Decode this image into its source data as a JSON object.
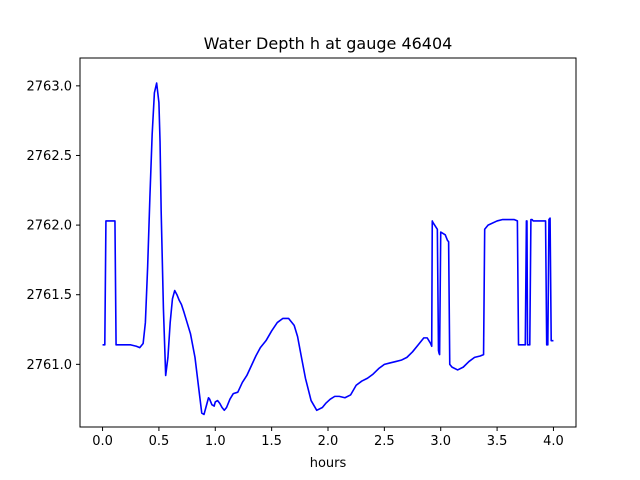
{
  "chart_data": {
    "type": "line",
    "title": "Water Depth h at gauge 46404",
    "xlabel": "hours",
    "ylabel": "",
    "xlim": [
      -0.2,
      4.2
    ],
    "ylim": [
      2760.55,
      2763.2
    ],
    "x_ticks": [
      0.0,
      0.5,
      1.0,
      1.5,
      2.0,
      2.5,
      3.0,
      3.5,
      4.0
    ],
    "x_tick_labels": [
      "0.0",
      "0.5",
      "1.0",
      "1.5",
      "2.0",
      "2.5",
      "3.0",
      "3.5",
      "4.0"
    ],
    "y_ticks": [
      2761.0,
      2761.5,
      2762.0,
      2762.5,
      2763.0
    ],
    "y_tick_labels": [
      "2761.0",
      "2761.5",
      "2762.0",
      "2762.5",
      "2763.0"
    ],
    "grid": false,
    "legend": "none",
    "series": [
      {
        "color": "#0000ff",
        "x": [
          0.0,
          0.02,
          0.03,
          0.08,
          0.11,
          0.12,
          0.2,
          0.25,
          0.3,
          0.33,
          0.36,
          0.38,
          0.4,
          0.42,
          0.44,
          0.46,
          0.48,
          0.5,
          0.51,
          0.52,
          0.54,
          0.56,
          0.58,
          0.6,
          0.62,
          0.64,
          0.66,
          0.68,
          0.7,
          0.72,
          0.75,
          0.78,
          0.82,
          0.85,
          0.88,
          0.9,
          0.92,
          0.94,
          0.95,
          0.97,
          0.99,
          1.0,
          1.02,
          1.04,
          1.06,
          1.08,
          1.1,
          1.13,
          1.16,
          1.2,
          1.24,
          1.28,
          1.32,
          1.36,
          1.4,
          1.45,
          1.5,
          1.55,
          1.6,
          1.65,
          1.7,
          1.73,
          1.76,
          1.8,
          1.85,
          1.9,
          1.95,
          1.98,
          2.02,
          2.06,
          2.1,
          2.15,
          2.2,
          2.25,
          2.3,
          2.35,
          2.4,
          2.45,
          2.5,
          2.55,
          2.6,
          2.65,
          2.7,
          2.75,
          2.8,
          2.85,
          2.88,
          2.91,
          2.92,
          2.925,
          2.93,
          2.97,
          2.98,
          2.985,
          2.99,
          3.0,
          3.04,
          3.06,
          3.07,
          3.08,
          3.1,
          3.15,
          3.2,
          3.25,
          3.3,
          3.35,
          3.38,
          3.39,
          3.42,
          3.5,
          3.55,
          3.6,
          3.65,
          3.68,
          3.69,
          3.75,
          3.76,
          3.765,
          3.77,
          3.78,
          3.79,
          3.8,
          3.81,
          3.82,
          3.9,
          3.93,
          3.94,
          3.95,
          3.96,
          3.97,
          3.98,
          3.99,
          4.0
        ],
        "y": [
          2761.14,
          2761.14,
          2762.03,
          2762.03,
          2762.03,
          2761.14,
          2761.14,
          2761.14,
          2761.13,
          2761.12,
          2761.15,
          2761.3,
          2761.7,
          2762.2,
          2762.65,
          2762.95,
          2763.02,
          2762.88,
          2762.6,
          2762.1,
          2761.4,
          2760.92,
          2761.05,
          2761.3,
          2761.47,
          2761.53,
          2761.5,
          2761.46,
          2761.43,
          2761.38,
          2761.3,
          2761.22,
          2761.05,
          2760.85,
          2760.65,
          2760.64,
          2760.7,
          2760.76,
          2760.75,
          2760.71,
          2760.7,
          2760.73,
          2760.74,
          2760.72,
          2760.69,
          2760.67,
          2760.69,
          2760.75,
          2760.79,
          2760.8,
          2760.87,
          2760.92,
          2760.99,
          2761.06,
          2761.12,
          2761.17,
          2761.24,
          2761.3,
          2761.33,
          2761.33,
          2761.28,
          2761.2,
          2761.07,
          2760.9,
          2760.74,
          2760.67,
          2760.69,
          2760.72,
          2760.75,
          2760.77,
          2760.77,
          2760.76,
          2760.78,
          2760.85,
          2760.88,
          2760.9,
          2760.93,
          2760.97,
          2761.0,
          2761.01,
          2761.02,
          2761.03,
          2761.05,
          2761.09,
          2761.14,
          2761.19,
          2761.19,
          2761.15,
          2761.13,
          2762.03,
          2762.02,
          2761.97,
          2761.1,
          2761.08,
          2761.07,
          2761.95,
          2761.93,
          2761.89,
          2761.88,
          2761.0,
          2760.98,
          2760.96,
          2760.98,
          2761.02,
          2761.05,
          2761.06,
          2761.07,
          2761.97,
          2762.0,
          2762.03,
          2762.04,
          2762.04,
          2762.04,
          2762.03,
          2761.14,
          2761.14,
          2762.03,
          2762.03,
          2761.14,
          2761.14,
          2761.14,
          2762.04,
          2762.04,
          2762.03,
          2762.03,
          2762.03,
          2761.14,
          2761.14,
          2762.04,
          2762.05,
          2761.17,
          2761.17,
          2761.17
        ]
      }
    ]
  }
}
